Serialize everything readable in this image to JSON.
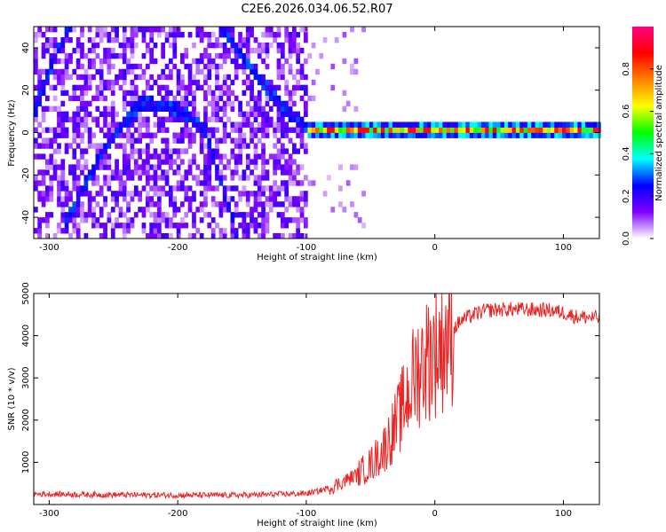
{
  "title": "C2E6.2026.034.06.52.R07",
  "chart_data": [
    {
      "type": "heatmap",
      "title": "C2E6.2026.034.06.52.R07",
      "xlabel": "Height of straight line (km)",
      "ylabel": "Frequency (Hz)",
      "xlim": [
        -312,
        128
      ],
      "ylim": [
        -50,
        50
      ],
      "xticks": [
        -300,
        -200,
        -100,
        0,
        100
      ],
      "xtick_labels": [
        "-300",
        "-200",
        "-100",
        "0",
        "100"
      ],
      "yticks": [
        -40,
        -20,
        0,
        20,
        40
      ],
      "ytick_labels": [
        "-40",
        "-20",
        "0",
        "20",
        "40"
      ],
      "colorbar": {
        "label": "Normalized spectral amplitude",
        "range": [
          0,
          1
        ],
        "ticks": [
          0.0,
          0.2,
          0.4,
          0.6,
          0.8
        ],
        "tick_labels": [
          "0.0",
          "0.2",
          "0.4",
          "0.6",
          "0.8"
        ],
        "colormap": [
          "#ffffff",
          "#8000ff",
          "#0000ff",
          "#00ffff",
          "#00ff00",
          "#ffff00",
          "#ff8000",
          "#ff0000",
          "#ff0080"
        ]
      },
      "features": [
        {
          "name": "noise region",
          "x_range": [
            -312,
            -100
          ],
          "amplitude": "0.1-0.3"
        },
        {
          "name": "carrier line",
          "x_range": [
            -100,
            128
          ],
          "frequency": 0,
          "peak_amplitude": 1.0
        },
        {
          "name": "curved trace",
          "points": [
            [
              -290,
              -45
            ],
            [
              -260,
              -10
            ],
            [
              -230,
              13
            ],
            [
              -200,
              10
            ],
            [
              -180,
              0
            ],
            [
              -155,
              -50
            ]
          ]
        },
        {
          "name": "rising trace",
          "points": [
            [
              -312,
              10
            ],
            [
              -300,
              30
            ],
            [
              -285,
              50
            ]
          ]
        },
        {
          "name": "descending trace",
          "points": [
            [
              -170,
              50
            ],
            [
              -120,
              10
            ],
            [
              -98,
              0
            ]
          ]
        }
      ]
    },
    {
      "type": "line",
      "xlabel": "Height of straight line (km)",
      "ylabel": "SNR (10 * v/v)",
      "xlim": [
        -312,
        128
      ],
      "ylim": [
        0,
        5000
      ],
      "xticks": [
        -300,
        -200,
        -100,
        0,
        100
      ],
      "xtick_labels": [
        "-300",
        "-200",
        "-100",
        "0",
        "100"
      ],
      "yticks": [
        1000,
        2000,
        3000,
        4000,
        5000
      ],
      "ytick_labels": [
        "1000",
        "2000",
        "3000",
        "4000",
        "5000"
      ],
      "series": [
        {
          "name": "SNR",
          "color": "#ee2222",
          "x": [
            -312,
            -250,
            -200,
            -150,
            -100,
            -90,
            -80,
            -70,
            -60,
            -50,
            -40,
            -30,
            -20,
            -15,
            -10,
            -5,
            0,
            10,
            20,
            30,
            40,
            50,
            70,
            90,
            100,
            110,
            128
          ],
          "values": [
            250,
            230,
            220,
            220,
            260,
            320,
            420,
            560,
            720,
            950,
            1300,
            1900,
            2700,
            3100,
            3350,
            3500,
            3650,
            4000,
            4350,
            4500,
            4600,
            4620,
            4620,
            4600,
            4550,
            4450,
            4420
          ]
        }
      ]
    }
  ]
}
